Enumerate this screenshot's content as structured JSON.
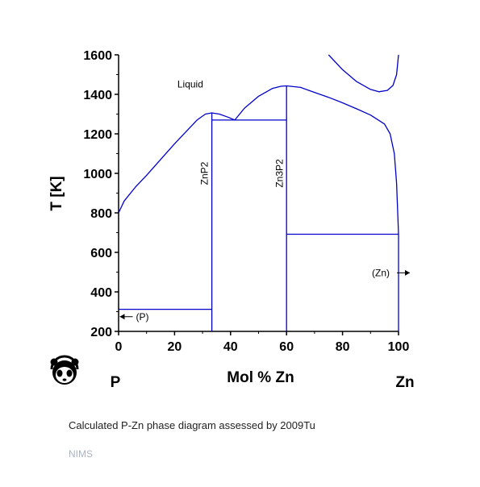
{
  "chart_data": {
    "type": "line",
    "title": "",
    "xlabel": "Mol % Zn",
    "ylabel": "T [K]",
    "xlim": [
      0,
      100
    ],
    "ylim": [
      200,
      1600
    ],
    "xticks": [
      0,
      20,
      40,
      60,
      80,
      100
    ],
    "yticks": [
      200,
      400,
      600,
      800,
      1000,
      1200,
      1400,
      1600
    ],
    "end_labels": {
      "left": "P",
      "right": "Zn"
    },
    "line_color": "#0000cc",
    "grid": false,
    "series": [
      {
        "id": "liquidus-left",
        "values": [
          [
            0,
            800
          ],
          [
            2,
            860
          ],
          [
            6,
            930
          ],
          [
            10,
            990
          ],
          [
            15,
            1070
          ],
          [
            20,
            1150
          ],
          [
            25,
            1225
          ],
          [
            28,
            1270
          ],
          [
            31,
            1300
          ],
          [
            33.3,
            1306
          ],
          [
            36,
            1300
          ],
          [
            39,
            1285
          ],
          [
            41.5,
            1270
          ]
        ]
      },
      {
        "id": "liquidus-right",
        "values": [
          [
            41.5,
            1270
          ],
          [
            45,
            1330
          ],
          [
            50,
            1390
          ],
          [
            55,
            1430
          ],
          [
            58,
            1441
          ],
          [
            60,
            1443
          ],
          [
            65,
            1435
          ],
          [
            70,
            1410
          ],
          [
            75,
            1385
          ],
          [
            80,
            1357
          ],
          [
            85,
            1327
          ],
          [
            90,
            1295
          ],
          [
            95,
            1250
          ],
          [
            97,
            1200
          ],
          [
            98.5,
            1100
          ],
          [
            99.3,
            950
          ],
          [
            99.7,
            800
          ],
          [
            100,
            692
          ]
        ]
      },
      {
        "id": "miscibility-gap",
        "values": [
          [
            75,
            1600
          ],
          [
            80,
            1525
          ],
          [
            85,
            1465
          ],
          [
            90,
            1425
          ],
          [
            93,
            1413
          ],
          [
            96,
            1420
          ],
          [
            98,
            1445
          ],
          [
            99.3,
            1500
          ],
          [
            100,
            1600
          ]
        ]
      },
      {
        "id": "eutectic-p-znp2",
        "values": [
          [
            0,
            312
          ],
          [
            33.3,
            312
          ]
        ]
      },
      {
        "id": "eutectic-znp2-zn3p2",
        "values": [
          [
            33.3,
            1270
          ],
          [
            60,
            1270
          ]
        ]
      },
      {
        "id": "eutectic-zn3p2-zn",
        "values": [
          [
            60,
            692
          ],
          [
            100,
            692
          ]
        ]
      },
      {
        "id": "znp2-compound-line",
        "values": [
          [
            33.3,
            200
          ],
          [
            33.3,
            1306
          ]
        ]
      },
      {
        "id": "zn3p2-compound-line",
        "values": [
          [
            60,
            200
          ],
          [
            60,
            1443
          ]
        ]
      },
      {
        "id": "zn-pure-line",
        "values": [
          [
            100,
            200
          ],
          [
            100,
            692
          ]
        ]
      }
    ],
    "annotations": [
      {
        "text": "Liquid",
        "x": 21,
        "y": 1435,
        "rotate": false
      },
      {
        "text": "ZnP2",
        "x": 31.8,
        "y": 1000,
        "rotate": true
      },
      {
        "text": "Zn3P2",
        "x": 58.6,
        "y": 1000,
        "rotate": true
      },
      {
        "text": "(P)",
        "x": 6.2,
        "y": 258,
        "rotate": false,
        "arrow": "left"
      },
      {
        "text": "(Zn)",
        "x": 90.5,
        "y": 480,
        "rotate": false,
        "arrow": "right"
      }
    ]
  },
  "caption": "Calculated P-Zn phase diagram assessed by 2009Tu",
  "credit": "NIMS",
  "logo_icon": "panda-logo-icon"
}
